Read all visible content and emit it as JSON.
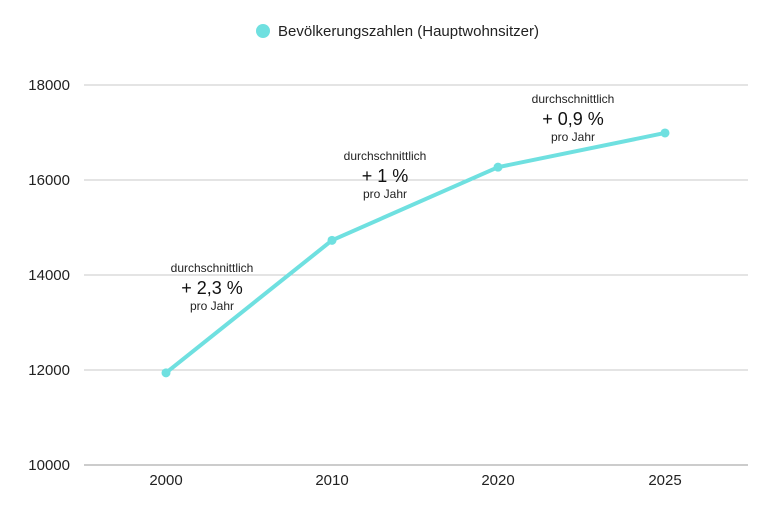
{
  "chart_data": {
    "type": "line",
    "title": "",
    "xlabel": "",
    "ylabel": "",
    "categories": [
      "2000",
      "2010",
      "2020",
      "2025"
    ],
    "series": [
      {
        "name": "Bevölkerungszahlen (Hauptwohnsitzer)",
        "values": [
          11940,
          14730,
          16270,
          16990
        ],
        "color": "#6fe0e0"
      }
    ],
    "ylim": [
      10000,
      18000
    ],
    "yticks": [
      "10000",
      "12000",
      "14000",
      "16000",
      "18000"
    ],
    "grid": true,
    "legend": "top-center",
    "annotations": [
      {
        "between": [
          "2000",
          "2010"
        ],
        "top": "durchschnittlich",
        "main": "+ 2,3 %",
        "bottom": "pro Jahr"
      },
      {
        "between": [
          "2010",
          "2020"
        ],
        "top": "durchschnittlich",
        "main": "+ 1 %",
        "bottom": "pro Jahr"
      },
      {
        "between": [
          "2020",
          "2025"
        ],
        "top": "durchschnittlich",
        "main": "+ 0,9 %",
        "bottom": "pro Jahr"
      }
    ]
  }
}
